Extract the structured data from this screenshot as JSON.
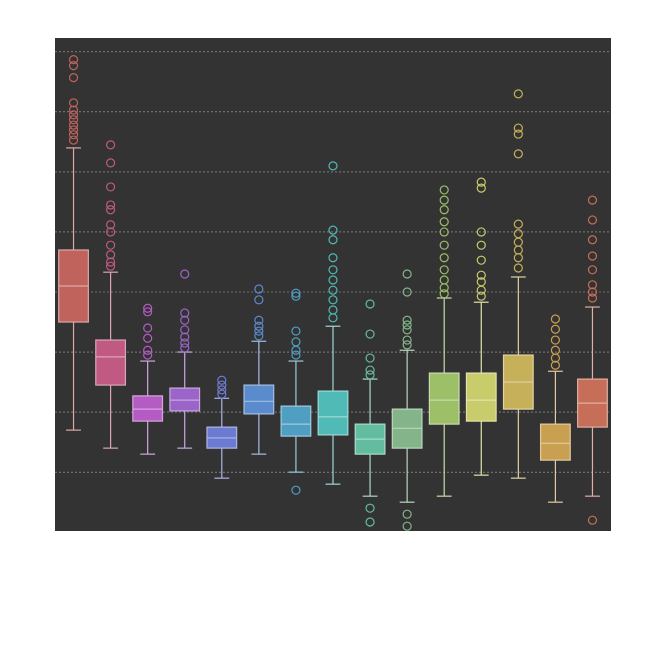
{
  "chart_data": {
    "type": "box",
    "ylim": [
      0.02,
      8.23
    ],
    "yticks": [
      1,
      2,
      3,
      4,
      5,
      6,
      7,
      8
    ],
    "grid": true,
    "boxes": [
      {
        "color": "#c0635d",
        "whislo": 1.7,
        "q1": 3.5,
        "median": 4.1,
        "q3": 4.7,
        "whishi": 6.4,
        "fliers": [
          7.87,
          7.77,
          7.57,
          7.15,
          7.03,
          6.95,
          6.87,
          6.78,
          6.7,
          6.62,
          6.53
        ]
      },
      {
        "color": "#c05a82",
        "whislo": 1.4,
        "q1": 2.45,
        "median": 2.92,
        "q3": 3.2,
        "whishi": 4.33,
        "fliers": [
          6.45,
          6.15,
          5.75,
          5.45,
          5.37,
          5.12,
          5.0,
          4.78,
          4.62,
          4.5,
          4.43
        ]
      },
      {
        "color": "#b55cc4",
        "whislo": 1.3,
        "q1": 1.85,
        "median": 2.05,
        "q3": 2.27,
        "whishi": 2.85,
        "fliers": [
          3.73,
          3.67,
          3.4,
          3.23,
          3.03,
          2.95
        ]
      },
      {
        "color": "#9a64c8",
        "whislo": 1.4,
        "q1": 2.02,
        "median": 2.2,
        "q3": 2.4,
        "whishi": 3.0,
        "fliers": [
          4.3,
          3.65,
          3.53,
          3.37,
          3.25,
          3.15,
          3.07
        ]
      },
      {
        "color": "#6c7bd2",
        "whislo": 0.9,
        "q1": 1.4,
        "median": 1.57,
        "q3": 1.75,
        "whishi": 2.23,
        "fliers": [
          2.53,
          2.45,
          2.37,
          2.3
        ]
      },
      {
        "color": "#5a8bcc",
        "whislo": 1.3,
        "q1": 1.97,
        "median": 2.18,
        "q3": 2.45,
        "whishi": 3.18,
        "fliers": [
          4.05,
          3.87,
          3.53,
          3.43,
          3.35,
          3.27
        ]
      },
      {
        "color": "#4f9fc2",
        "whislo": 1.0,
        "q1": 1.6,
        "median": 1.8,
        "q3": 2.1,
        "whishi": 2.85,
        "fliers": [
          0.7,
          3.98,
          3.93,
          3.35,
          3.17,
          3.03,
          2.95
        ]
      },
      {
        "color": "#4fbab6",
        "whislo": 0.8,
        "q1": 1.62,
        "median": 1.92,
        "q3": 2.35,
        "whishi": 3.43,
        "fliers": [
          6.1,
          5.03,
          4.87,
          4.57,
          4.37,
          4.2,
          4.03,
          3.87,
          3.7,
          3.57
        ]
      },
      {
        "color": "#62bca0",
        "whislo": 0.6,
        "q1": 1.3,
        "median": 1.55,
        "q3": 1.8,
        "whishi": 2.55,
        "fliers": [
          0.4,
          0.17,
          3.8,
          3.3,
          2.9,
          2.7,
          2.62
        ]
      },
      {
        "color": "#84b58a",
        "whislo": 0.5,
        "q1": 1.4,
        "median": 1.73,
        "q3": 2.05,
        "whishi": 3.03,
        "fliers": [
          0.3,
          0.1,
          4.3,
          4.0,
          3.53,
          3.45,
          3.37,
          3.2,
          3.12
        ]
      },
      {
        "color": "#9cbf68",
        "whislo": 0.6,
        "q1": 1.8,
        "median": 2.2,
        "q3": 2.65,
        "whishi": 3.9,
        "fliers": [
          5.7,
          5.53,
          5.37,
          5.17,
          5.0,
          4.78,
          4.57,
          4.37,
          4.2,
          4.07,
          3.97
        ]
      },
      {
        "color": "#c8cc6a",
        "whislo": 0.95,
        "q1": 1.85,
        "median": 2.2,
        "q3": 2.65,
        "whishi": 3.83,
        "fliers": [
          5.83,
          5.73,
          5.0,
          4.78,
          4.53,
          4.28,
          4.17,
          4.03,
          3.93
        ]
      },
      {
        "color": "#c7b05a",
        "whislo": 0.9,
        "q1": 2.05,
        "median": 2.5,
        "q3": 2.95,
        "whishi": 4.25,
        "fliers": [
          7.3,
          6.73,
          6.63,
          6.3,
          5.13,
          4.97,
          4.83,
          4.7,
          4.57,
          4.4
        ]
      },
      {
        "color": "#c9a052",
        "whislo": 0.5,
        "q1": 1.2,
        "median": 1.48,
        "q3": 1.8,
        "whishi": 2.68,
        "fliers": [
          3.55,
          3.38,
          3.2,
          3.03,
          2.9,
          2.78
        ]
      },
      {
        "color": "#c76e58",
        "whislo": 0.6,
        "q1": 1.75,
        "median": 2.15,
        "q3": 2.55,
        "whishi": 3.75,
        "fliers": [
          0.2,
          5.53,
          5.2,
          4.87,
          4.6,
          4.37,
          4.12,
          4.0,
          3.9
        ]
      }
    ]
  }
}
